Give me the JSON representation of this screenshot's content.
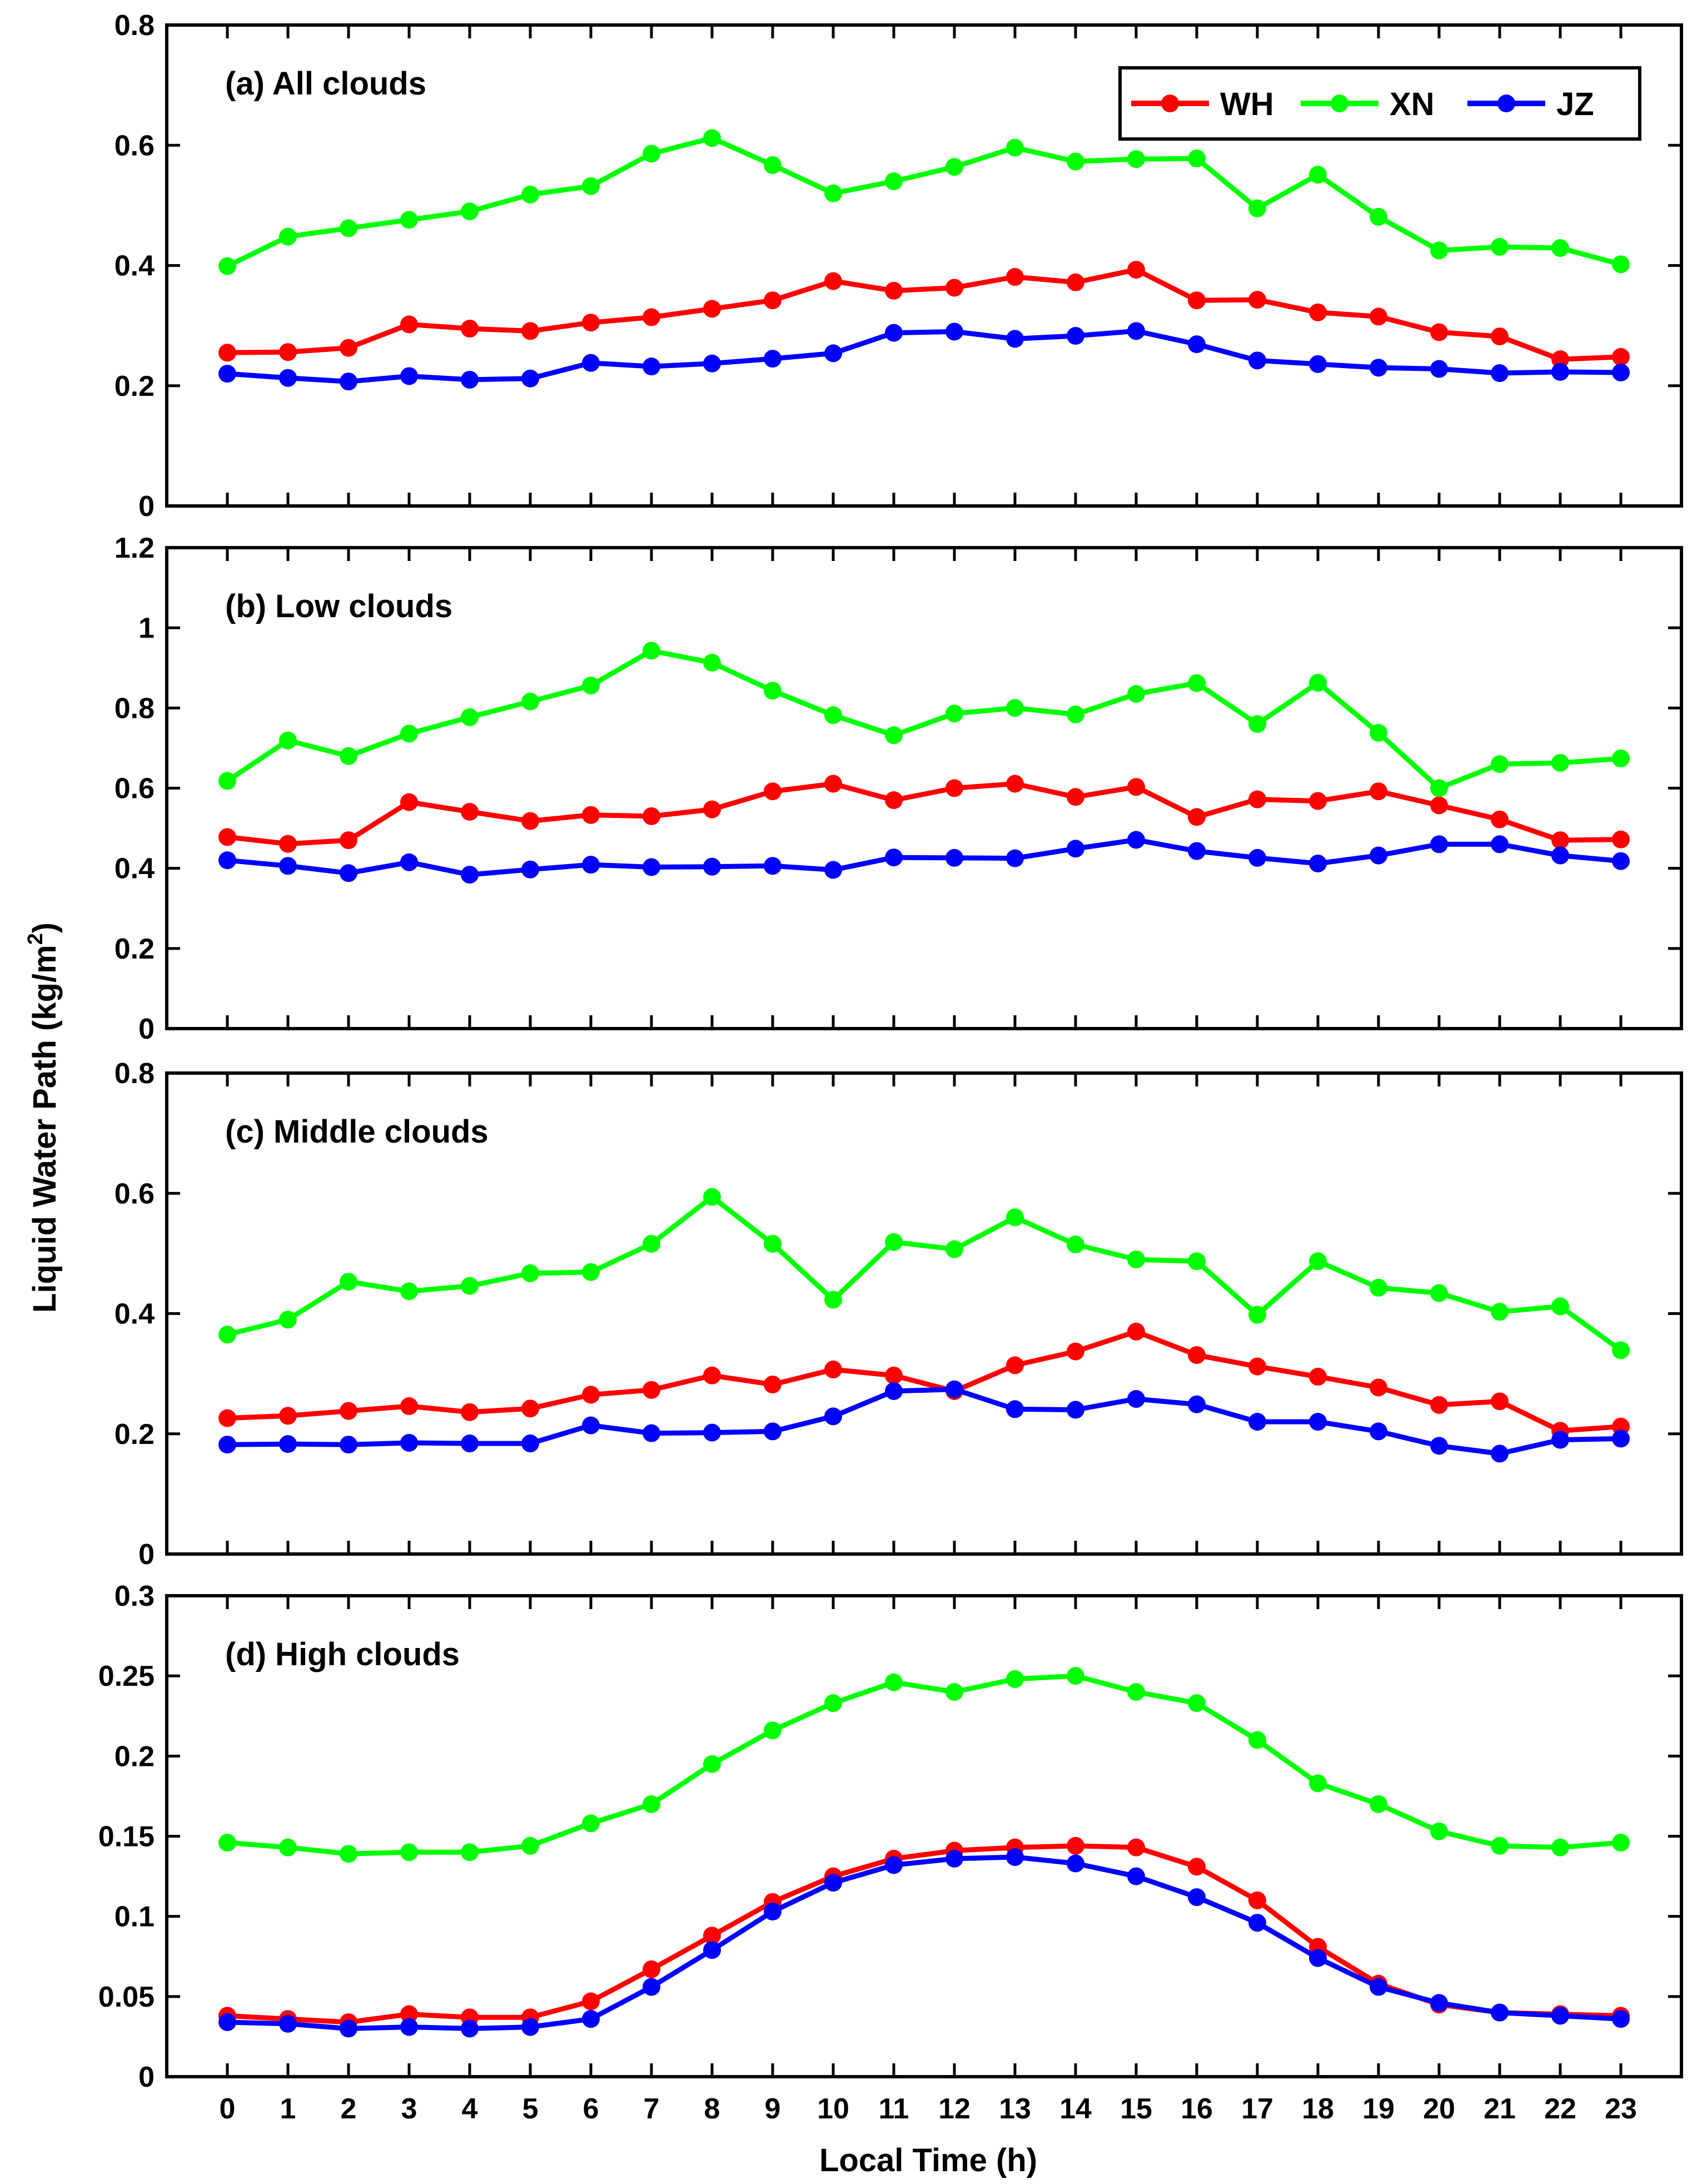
{
  "chart_data": [
    {
      "type": "line",
      "title": "(a) All clouds",
      "xlabel": "Local Time (h)",
      "ylabel": "Liquid Water Path (kg/m2)",
      "x": [
        0,
        1,
        2,
        3,
        4,
        5,
        6,
        7,
        8,
        9,
        10,
        11,
        12,
        13,
        14,
        15,
        16,
        17,
        18,
        19,
        20,
        21,
        22,
        23
      ],
      "xlim": [
        -1,
        24
      ],
      "ylim": [
        0,
        0.8
      ],
      "yticks": [
        0,
        0.2,
        0.4,
        0.6,
        0.8
      ],
      "ytick_labels": [
        "0",
        "0.2",
        "0.4",
        "0.6",
        "0.8"
      ],
      "grid": false,
      "legend": "top-right",
      "series": [
        {
          "name": "WH",
          "color": "#ff0000",
          "values": [
            0.255,
            0.256,
            0.263,
            0.302,
            0.295,
            0.291,
            0.305,
            0.314,
            0.328,
            0.342,
            0.374,
            0.358,
            0.363,
            0.381,
            0.372,
            0.393,
            0.342,
            0.343,
            0.322,
            0.315,
            0.289,
            0.282,
            0.244,
            0.248
          ]
        },
        {
          "name": "XN",
          "color": "#00ff00",
          "values": [
            0.399,
            0.448,
            0.462,
            0.476,
            0.49,
            0.518,
            0.532,
            0.586,
            0.612,
            0.567,
            0.52,
            0.54,
            0.564,
            0.596,
            0.573,
            0.577,
            0.578,
            0.495,
            0.551,
            0.481,
            0.425,
            0.431,
            0.429,
            0.402
          ]
        },
        {
          "name": "JZ",
          "color": "#0000ff",
          "values": [
            0.22,
            0.213,
            0.207,
            0.216,
            0.21,
            0.212,
            0.238,
            0.232,
            0.237,
            0.245,
            0.254,
            0.288,
            0.29,
            0.278,
            0.283,
            0.291,
            0.269,
            0.242,
            0.236,
            0.23,
            0.228,
            0.221,
            0.223,
            0.222
          ]
        }
      ]
    },
    {
      "type": "line",
      "title": "(b) Low clouds",
      "xlabel": "Local Time (h)",
      "ylabel": "Liquid Water Path (kg/m2)",
      "x": [
        0,
        1,
        2,
        3,
        4,
        5,
        6,
        7,
        8,
        9,
        10,
        11,
        12,
        13,
        14,
        15,
        16,
        17,
        18,
        19,
        20,
        21,
        22,
        23
      ],
      "xlim": [
        -1,
        24
      ],
      "ylim": [
        0,
        1.2
      ],
      "yticks": [
        0,
        0.2,
        0.4,
        0.6,
        0.8,
        1.0,
        1.2
      ],
      "ytick_labels": [
        "0",
        "0.2",
        "0.4",
        "0.6",
        "0.8",
        "1",
        "1.2"
      ],
      "grid": false,
      "series": [
        {
          "name": "WH",
          "color": "#ff0000",
          "values": [
            0.478,
            0.461,
            0.47,
            0.565,
            0.541,
            0.518,
            0.533,
            0.53,
            0.547,
            0.592,
            0.611,
            0.57,
            0.6,
            0.611,
            0.578,
            0.603,
            0.528,
            0.572,
            0.568,
            0.592,
            0.557,
            0.522,
            0.47,
            0.472
          ]
        },
        {
          "name": "XN",
          "color": "#00ff00",
          "values": [
            0.618,
            0.719,
            0.68,
            0.736,
            0.777,
            0.816,
            0.856,
            0.943,
            0.913,
            0.843,
            0.782,
            0.732,
            0.786,
            0.8,
            0.784,
            0.835,
            0.862,
            0.76,
            0.863,
            0.738,
            0.6,
            0.66,
            0.663,
            0.674
          ]
        },
        {
          "name": "JZ",
          "color": "#0000ff",
          "values": [
            0.42,
            0.406,
            0.388,
            0.415,
            0.384,
            0.397,
            0.409,
            0.403,
            0.404,
            0.406,
            0.396,
            0.427,
            0.426,
            0.425,
            0.449,
            0.471,
            0.443,
            0.426,
            0.412,
            0.432,
            0.46,
            0.46,
            0.432,
            0.418
          ]
        }
      ]
    },
    {
      "type": "line",
      "title": "(c) Middle clouds",
      "xlabel": "Local Time (h)",
      "ylabel": "Liquid Water Path (kg/m2)",
      "x": [
        0,
        1,
        2,
        3,
        4,
        5,
        6,
        7,
        8,
        9,
        10,
        11,
        12,
        13,
        14,
        15,
        16,
        17,
        18,
        19,
        20,
        21,
        22,
        23
      ],
      "xlim": [
        -1,
        24
      ],
      "ylim": [
        0,
        0.8
      ],
      "yticks": [
        0,
        0.2,
        0.4,
        0.6,
        0.8
      ],
      "ytick_labels": [
        "0",
        "0.2",
        "0.4",
        "0.6",
        "0.8"
      ],
      "grid": false,
      "series": [
        {
          "name": "WH",
          "color": "#ff0000",
          "values": [
            0.226,
            0.23,
            0.238,
            0.246,
            0.236,
            0.242,
            0.265,
            0.273,
            0.297,
            0.282,
            0.307,
            0.297,
            0.271,
            0.314,
            0.337,
            0.37,
            0.331,
            0.312,
            0.295,
            0.277,
            0.248,
            0.254,
            0.205,
            0.212
          ]
        },
        {
          "name": "XN",
          "color": "#00ff00",
          "values": [
            0.365,
            0.39,
            0.453,
            0.437,
            0.446,
            0.467,
            0.469,
            0.516,
            0.594,
            0.516,
            0.423,
            0.519,
            0.507,
            0.56,
            0.515,
            0.49,
            0.487,
            0.398,
            0.487,
            0.443,
            0.434,
            0.403,
            0.412,
            0.339
          ]
        },
        {
          "name": "JZ",
          "color": "#0000ff",
          "values": [
            0.182,
            0.183,
            0.182,
            0.185,
            0.184,
            0.184,
            0.214,
            0.201,
            0.202,
            0.204,
            0.229,
            0.271,
            0.274,
            0.241,
            0.24,
            0.258,
            0.249,
            0.22,
            0.22,
            0.204,
            0.18,
            0.167,
            0.19,
            0.192
          ]
        }
      ]
    },
    {
      "type": "line",
      "title": "(d) High clouds",
      "xlabel": "Local Time (h)",
      "ylabel": "Liquid Water Path (kg/m2)",
      "x": [
        0,
        1,
        2,
        3,
        4,
        5,
        6,
        7,
        8,
        9,
        10,
        11,
        12,
        13,
        14,
        15,
        16,
        17,
        18,
        19,
        20,
        21,
        22,
        23
      ],
      "xlim": [
        -1,
        24
      ],
      "ylim": [
        0,
        0.3
      ],
      "yticks": [
        0,
        0.05,
        0.1,
        0.15,
        0.2,
        0.25,
        0.3
      ],
      "ytick_labels": [
        "0",
        "0.05",
        "0.1",
        "0.15",
        "0.2",
        "0.25",
        "0.3"
      ],
      "grid": false,
      "series": [
        {
          "name": "WH",
          "color": "#ff0000",
          "values": [
            0.038,
            0.036,
            0.034,
            0.039,
            0.037,
            0.037,
            0.047,
            0.067,
            0.088,
            0.109,
            0.125,
            0.136,
            0.141,
            0.143,
            0.144,
            0.143,
            0.131,
            0.11,
            0.081,
            0.058,
            0.045,
            0.04,
            0.039,
            0.038
          ]
        },
        {
          "name": "XN",
          "color": "#00ff00",
          "values": [
            0.146,
            0.143,
            0.139,
            0.14,
            0.14,
            0.144,
            0.158,
            0.17,
            0.195,
            0.216,
            0.233,
            0.246,
            0.24,
            0.248,
            0.25,
            0.24,
            0.233,
            0.21,
            0.183,
            0.17,
            0.153,
            0.144,
            0.143,
            0.146
          ]
        },
        {
          "name": "JZ",
          "color": "#0000ff",
          "values": [
            0.034,
            0.033,
            0.03,
            0.031,
            0.03,
            0.031,
            0.036,
            0.056,
            0.079,
            0.103,
            0.121,
            0.132,
            0.136,
            0.137,
            0.133,
            0.125,
            0.112,
            0.096,
            0.074,
            0.056,
            0.046,
            0.04,
            0.038,
            0.036
          ]
        }
      ]
    }
  ],
  "x_tick_labels": [
    "0",
    "1",
    "2",
    "3",
    "4",
    "5",
    "6",
    "7",
    "8",
    "9",
    "10",
    "11",
    "12",
    "13",
    "14",
    "15",
    "16",
    "17",
    "18",
    "19",
    "20",
    "21",
    "22",
    "23"
  ],
  "xlabel": "Local Time (h)",
  "ylabel": {
    "main": "Liquid Water Path (kg/m",
    "superscript": "2",
    "close": ")"
  },
  "legend": [
    {
      "label": "WH",
      "color": "#ff0000"
    },
    {
      "label": "XN",
      "color": "#00ff00"
    },
    {
      "label": "JZ",
      "color": "#0000ff"
    }
  ]
}
